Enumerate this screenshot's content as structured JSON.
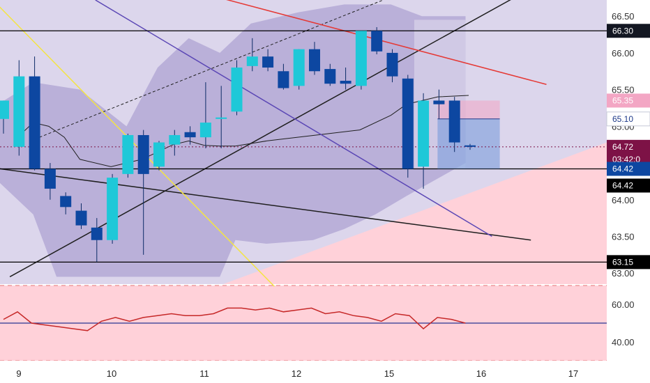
{
  "chart_data": {
    "type": "candlestick",
    "price_axis": {
      "ylim": [
        62.85,
        66.72
      ],
      "ticks": [
        "66.50",
        "66.00",
        "65.50",
        "65.00",
        "64.00",
        "63.50",
        "63.00"
      ]
    },
    "x_axis": {
      "ticks": [
        "9",
        "10",
        "11",
        "12",
        "15",
        "16",
        "17"
      ]
    },
    "candles": [
      {
        "o": 65.1,
        "h": 65.35,
        "l": 64.9,
        "c": 65.35
      },
      {
        "o": 64.72,
        "h": 65.9,
        "l": 64.6,
        "c": 65.68
      },
      {
        "o": 65.68,
        "h": 65.95,
        "l": 64.4,
        "c": 64.42
      },
      {
        "o": 64.42,
        "h": 64.5,
        "l": 64.0,
        "c": 64.15
      },
      {
        "o": 64.05,
        "h": 64.1,
        "l": 63.8,
        "c": 63.9
      },
      {
        "o": 63.85,
        "h": 63.95,
        "l": 63.6,
        "c": 63.65
      },
      {
        "o": 63.62,
        "h": 63.75,
        "l": 63.15,
        "c": 63.45
      },
      {
        "o": 63.45,
        "h": 64.35,
        "l": 63.4,
        "c": 64.3
      },
      {
        "o": 64.35,
        "h": 64.9,
        "l": 64.3,
        "c": 64.88
      },
      {
        "o": 64.88,
        "h": 64.95,
        "l": 63.25,
        "c": 64.35
      },
      {
        "o": 64.45,
        "h": 64.8,
        "l": 64.4,
        "c": 64.78
      },
      {
        "o": 64.75,
        "h": 64.95,
        "l": 64.6,
        "c": 64.88
      },
      {
        "o": 64.92,
        "h": 65.0,
        "l": 64.75,
        "c": 64.85
      },
      {
        "o": 64.85,
        "h": 65.6,
        "l": 64.7,
        "c": 65.05
      },
      {
        "o": 65.1,
        "h": 65.55,
        "l": 64.7,
        "c": 65.12
      },
      {
        "o": 65.2,
        "h": 65.9,
        "l": 65.15,
        "c": 65.8
      },
      {
        "o": 65.82,
        "h": 66.2,
        "l": 65.75,
        "c": 65.95
      },
      {
        "o": 65.95,
        "h": 66.05,
        "l": 65.75,
        "c": 65.8
      },
      {
        "o": 65.75,
        "h": 65.85,
        "l": 65.5,
        "c": 65.52
      },
      {
        "o": 65.55,
        "h": 66.05,
        "l": 65.5,
        "c": 66.05
      },
      {
        "o": 66.05,
        "h": 66.15,
        "l": 65.7,
        "c": 65.75
      },
      {
        "o": 65.78,
        "h": 65.85,
        "l": 65.55,
        "c": 65.58
      },
      {
        "o": 65.62,
        "h": 65.8,
        "l": 65.5,
        "c": 65.58
      },
      {
        "o": 65.55,
        "h": 66.3,
        "l": 65.5,
        "c": 66.3
      },
      {
        "o": 66.3,
        "h": 66.35,
        "l": 65.98,
        "c": 66.02
      },
      {
        "o": 66.0,
        "h": 66.05,
        "l": 65.6,
        "c": 65.68
      },
      {
        "o": 65.65,
        "h": 65.7,
        "l": 64.3,
        "c": 64.42
      },
      {
        "o": 64.45,
        "h": 65.45,
        "l": 64.15,
        "c": 65.35
      },
      {
        "o": 65.35,
        "h": 65.5,
        "l": 65.1,
        "c": 65.3
      },
      {
        "o": 65.35,
        "h": 65.4,
        "l": 64.65,
        "c": 64.78
      },
      {
        "o": 64.74,
        "h": 64.76,
        "l": 64.68,
        "c": 64.72
      }
    ],
    "lines": [
      {
        "name": "",
        "color": "#1f1f1f",
        "points": [
          [
            -1.5,
            64.46
          ],
          [
            34.0,
            63.45
          ]
        ]
      },
      {
        "name": "",
        "color": "#1f1f1f",
        "points": [
          [
            0.5,
            62.95
          ],
          [
            33.0,
            66.76
          ]
        ]
      },
      {
        "name": "",
        "color": "#e53935",
        "points": [
          [
            14.0,
            66.75
          ],
          [
            35.0,
            65.57
          ]
        ]
      },
      {
        "name": "",
        "color": "#5b47b5",
        "points": [
          [
            6.0,
            66.72
          ],
          [
            31.5,
            63.5
          ]
        ]
      },
      {
        "name": "",
        "color": "#f4e542",
        "points": [
          [
            -0.5,
            66.7
          ],
          [
            17.5,
            62.82
          ]
        ]
      }
    ],
    "horizontal_levels": [
      66.3,
      64.42,
      63.15
    ],
    "current_price": 64.72,
    "price_tags": [
      {
        "value": 66.3,
        "text": "66.30",
        "bg": "#131722",
        "fg": "#ffffff"
      },
      {
        "value": 65.35,
        "text": "65.35",
        "bg": "#f3a6c4",
        "fg": "#ffffff"
      },
      {
        "value": 65.1,
        "text": "65.10",
        "bg": "#ffffff",
        "fg": "#1e3a8a"
      },
      {
        "value": 64.72,
        "text": "64.72",
        "bg": "#7d1246",
        "fg": "#ffffff",
        "sub": "03:42:0"
      },
      {
        "value": 64.42,
        "text": "64.42",
        "bg": "#0d47a1",
        "fg": "#ffffff"
      },
      {
        "value": 64.42,
        "text": "64.42",
        "bg": "#000000",
        "fg": "#ffffff",
        "offset": 1
      },
      {
        "value": 63.15,
        "text": "63.15",
        "bg": "#000000",
        "fg": "#ffffff"
      }
    ],
    "rsi": {
      "ticks": [
        "60.00",
        "40.00"
      ],
      "ylim": [
        30,
        70
      ],
      "midline": 50,
      "bands": [
        70,
        30
      ],
      "values": [
        52,
        56,
        50,
        49,
        48,
        47,
        46,
        51,
        53,
        51,
        53,
        54,
        55,
        54,
        54,
        55,
        58,
        58,
        57,
        58,
        56,
        57,
        58,
        55,
        56,
        54,
        53,
        51,
        55,
        54,
        47,
        53,
        52,
        50
      ]
    },
    "colors": {
      "up_candle": "#1ec8d8",
      "down_candle": "#0d47a1",
      "cloud": "#a79bd0",
      "pink_zone": "#ffd1d9",
      "rsi_line": "#c62828",
      "rsi_mid": "#283593"
    }
  }
}
